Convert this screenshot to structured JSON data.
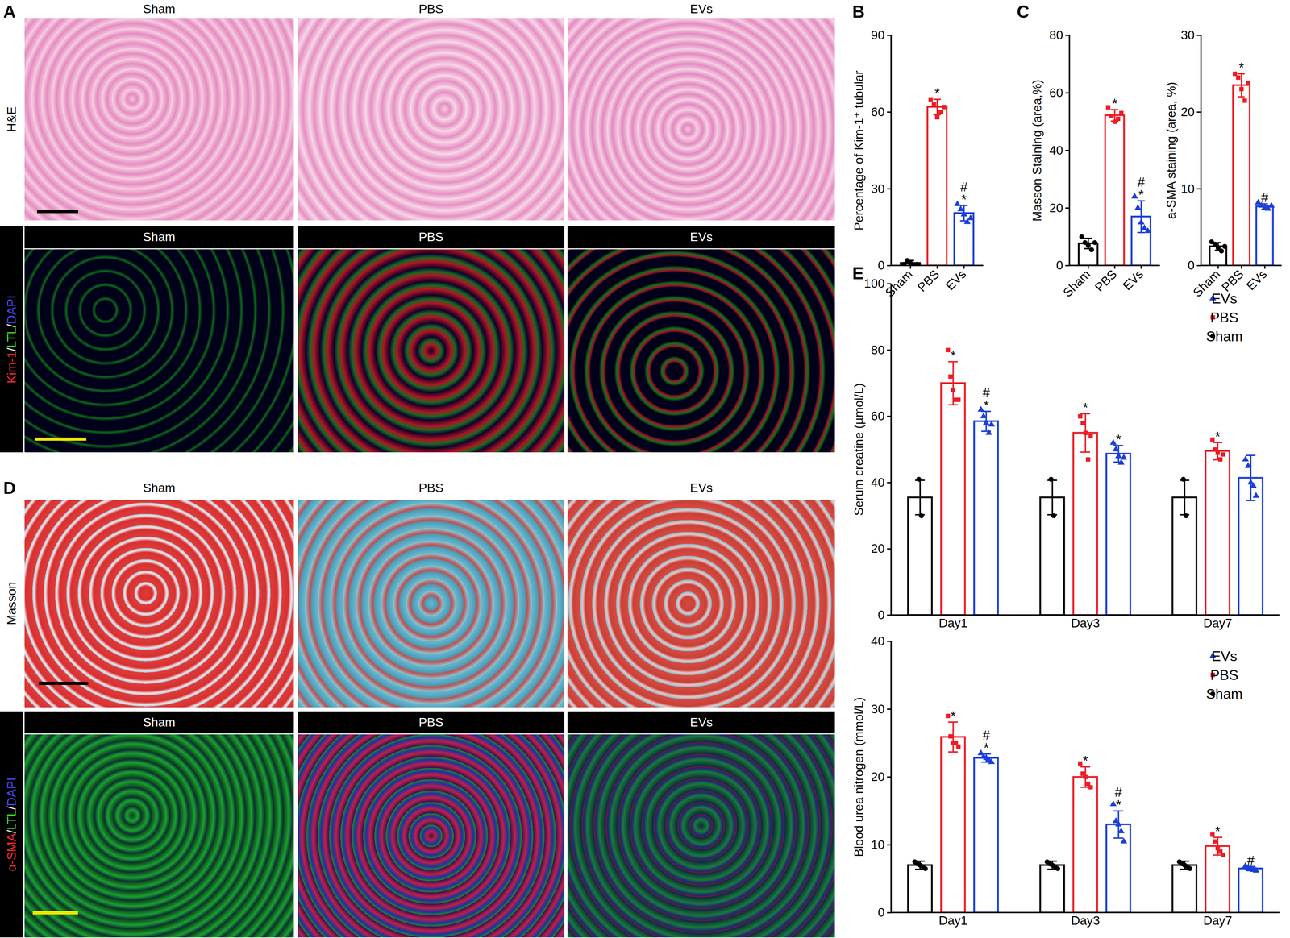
{
  "panel_labels": [
    "A",
    "B",
    "C",
    "D",
    "E"
  ],
  "image_panels": [
    {
      "columns": [
        "Sham",
        "PBS",
        "EVs"
      ],
      "rows": [
        {
          "label": [
            {
              "text": "H&E",
              "color": "#000000"
            }
          ]
        },
        {
          "label": [
            {
              "text": "Kim-1",
              "color": "#ff2a2a"
            },
            {
              "text": "/",
              "color": "#ffffff"
            },
            {
              "text": "LTL",
              "color": "#3ae03a"
            },
            {
              "text": "/",
              "color": "#ffffff"
            },
            {
              "text": "DAPI",
              "color": "#4a4aff"
            }
          ]
        }
      ]
    },
    {
      "columns": [
        "Sham",
        "PBS",
        "EVs"
      ],
      "rows": [
        {
          "label": [
            {
              "text": "Masson",
              "color": "#000000"
            }
          ]
        },
        {
          "label": [
            {
              "text": "α-SMA",
              "color": "#ff2a2a"
            },
            {
              "text": "/",
              "color": "#ffffff"
            },
            {
              "text": "LTL",
              "color": "#3ae03a"
            },
            {
              "text": "/",
              "color": "#ffffff"
            },
            {
              "text": "DAPI",
              "color": "#4a4aff"
            }
          ]
        }
      ]
    }
  ],
  "chart_data": [
    {
      "type": "bar",
      "ylabel": "Percentage of Kim-1⁺ tubular",
      "ylim": [
        0,
        90
      ],
      "yticks": [
        0,
        30,
        60,
        90
      ],
      "series": [
        {
          "name": "Sham",
          "color": "#000000",
          "marker": "circle",
          "values": [
            1
          ],
          "errors": [
            1
          ],
          "points": [
            [
              0.5,
              2,
              1,
              0,
              0.5
            ]
          ],
          "significance": [
            []
          ]
        },
        {
          "name": "PBS",
          "color": "#ed1c24",
          "marker": "square",
          "values": [
            62
          ],
          "errors": [
            3
          ],
          "points": [
            [
              65,
              63,
              58,
              60,
              62
            ]
          ],
          "significance": [
            [
              "*"
            ]
          ]
        },
        {
          "name": "EVs",
          "color": "#1b3fd8",
          "marker": "triangle",
          "values": [
            20.5
          ],
          "errors": [
            3
          ],
          "points": [
            [
              24,
              22,
              20,
              17,
              18.5
            ]
          ],
          "significance": [
            [
              "#",
              "*"
            ]
          ]
        }
      ]
    },
    {
      "type": "bar",
      "ylabel": "Masson Staining (area,%)",
      "ylim": [
        0,
        80
      ],
      "yticks": [
        0,
        20,
        40,
        60,
        80
      ],
      "series": [
        {
          "name": "Sham",
          "color": "#000000",
          "marker": "circle",
          "values": [
            7.7
          ],
          "errors": [
            1.8
          ],
          "points": [
            [
              10,
              8,
              7,
              5.5,
              8
            ]
          ],
          "significance": [
            []
          ]
        },
        {
          "name": "PBS",
          "color": "#ed1c24",
          "marker": "square",
          "values": [
            52.2
          ],
          "errors": [
            2
          ],
          "points": [
            [
              55,
              52,
              50,
              51,
              53
            ]
          ],
          "significance": [
            [
              "*"
            ]
          ]
        },
        {
          "name": "EVs",
          "color": "#1b3fd8",
          "marker": "triangle",
          "values": [
            17
          ],
          "errors": [
            5.5
          ],
          "points": [
            [
              24,
              20,
              15,
              13,
              12
            ]
          ],
          "significance": [
            [
              "#",
              "*"
            ]
          ]
        }
      ]
    },
    {
      "type": "bar",
      "ylabel": "a-SMA staining (area, %)",
      "ylim": [
        0,
        30
      ],
      "yticks": [
        0,
        10,
        20,
        30
      ],
      "series": [
        {
          "name": "Sham",
          "color": "#000000",
          "marker": "circle",
          "values": [
            2.5
          ],
          "errors": [
            0.5
          ],
          "points": [
            [
              3.1,
              2.8,
              2.3,
              1.9,
              2.5
            ]
          ],
          "significance": [
            []
          ]
        },
        {
          "name": "PBS",
          "color": "#ed1c24",
          "marker": "square",
          "values": [
            23.5
          ],
          "errors": [
            1.5
          ],
          "points": [
            [
              25,
              24.5,
              23,
              21.5,
              23.8
            ]
          ],
          "significance": [
            [
              "*"
            ]
          ]
        },
        {
          "name": "EVs",
          "color": "#1b3fd8",
          "marker": "triangle",
          "values": [
            7.7
          ],
          "errors": [
            0.35
          ],
          "points": [
            [
              8.2,
              7.8,
              7.5,
              7.4,
              7.8
            ]
          ],
          "significance": [
            [
              "#"
            ]
          ]
        }
      ]
    },
    {
      "type": "bar",
      "categories": [
        "Day1",
        "Day3",
        "Day7"
      ],
      "ylabel": "Serum creatine (µmol/L)",
      "ylim": [
        0,
        100
      ],
      "yticks": [
        0,
        20,
        40,
        60,
        80,
        100
      ],
      "legend": "top-right",
      "series": [
        {
          "name": "Sham",
          "color": "#000000",
          "marker": "circle",
          "values": [
            35.5,
            35.5,
            35.5
          ],
          "errors": [
            5.2,
            5.2,
            5.2
          ],
          "points": [
            [
              41,
              30
            ],
            [
              41,
              30
            ],
            [
              41,
              30
            ]
          ],
          "significance": [
            [],
            [],
            []
          ]
        },
        {
          "name": "PBS",
          "color": "#ed1c24",
          "marker": "square",
          "values": [
            70,
            55,
            49.5
          ],
          "errors": [
            6.5,
            5.8,
            2.6
          ],
          "points": [
            [
              80,
              72,
              68,
              65,
              65
            ],
            [
              60,
              58,
              55,
              47,
              54
            ],
            [
              53,
              50,
              49,
              47,
              48.5
            ]
          ],
          "significance": [
            [
              "*"
            ],
            [
              "*"
            ],
            [
              "*"
            ]
          ]
        },
        {
          "name": "EVs",
          "color": "#1b3fd8",
          "marker": "triangle",
          "values": [
            58.5,
            48.7,
            41.4
          ],
          "errors": [
            3,
            2.5,
            6.8
          ],
          "points": [
            [
              62,
              60,
              58,
              55,
              57.5
            ],
            [
              52,
              50,
              48,
              46,
              47.5
            ],
            [
              47,
              45,
              40,
              39,
              36
            ]
          ],
          "significance": [
            [
              "#",
              "*"
            ],
            [
              "*"
            ],
            []
          ]
        }
      ]
    },
    {
      "type": "bar",
      "categories": [
        "Day1",
        "Day3",
        "Day7"
      ],
      "ylabel": "Blood urea nitrogen (mmol/L)",
      "ylim": [
        0,
        40
      ],
      "yticks": [
        0,
        10,
        20,
        30,
        40
      ],
      "legend": "top-right",
      "series": [
        {
          "name": "Sham",
          "color": "#000000",
          "marker": "circle",
          "values": [
            7,
            7,
            7
          ],
          "errors": [
            0.6,
            0.6,
            0.6
          ],
          "points": [
            [
              7.5,
              7.2,
              7,
              6.8,
              6.5
            ],
            [
              7.5,
              7.2,
              7,
              6.8,
              6.5
            ],
            [
              7.5,
              7.2,
              7,
              6.8,
              6.5
            ]
          ],
          "significance": [
            [],
            [],
            []
          ]
        },
        {
          "name": "PBS",
          "color": "#ed1c24",
          "marker": "square",
          "values": [
            25.9,
            20,
            9.8
          ],
          "errors": [
            2.2,
            1.5,
            1.3
          ],
          "points": [
            [
              29,
              26,
              25,
              25,
              24.5
            ],
            [
              22,
              20.5,
              20,
              19,
              18.5
            ],
            [
              11.5,
              10.5,
              9.5,
              9,
              8.5
            ]
          ],
          "significance": [
            [
              "*"
            ],
            [
              "*"
            ],
            [
              "*"
            ]
          ]
        },
        {
          "name": "EVs",
          "color": "#1b3fd8",
          "marker": "triangle",
          "values": [
            22.8,
            13,
            6.5
          ],
          "errors": [
            0.6,
            2,
            0.3
          ],
          "points": [
            [
              23.5,
              23,
              22.8,
              22.5,
              22.2
            ],
            [
              16,
              13.5,
              13,
              12,
              10.5
            ],
            [
              6.9,
              6.6,
              6.5,
              6.3,
              6.2
            ]
          ],
          "significance": [
            [
              "#",
              "*"
            ],
            [
              "#",
              "*"
            ],
            [
              "#"
            ]
          ]
        }
      ]
    }
  ]
}
